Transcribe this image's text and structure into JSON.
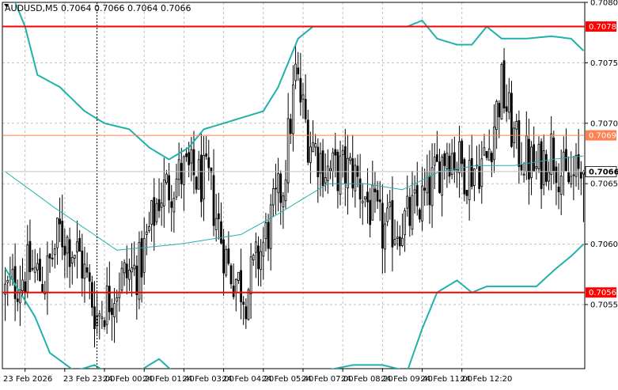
{
  "header": {
    "symbol_line": "AUDUSD,M5  0.7064 0.7066 0.7064 0.7066"
  },
  "colors": {
    "background": "#ffffff",
    "grid": "#c0c0c0",
    "candle": "#000000",
    "bands": "#20b2aa",
    "level_line": "#ff0000",
    "level_line_thin": "#ff7f50",
    "price_tag_text": "#ffffff",
    "current_tag_bg": "#ffffff",
    "current_tag_text": "#000000"
  },
  "chart_data": {
    "type": "candlestick",
    "symbol": "AUDUSD",
    "timeframe": "M5",
    "ylim": [
      0.70497,
      0.708
    ],
    "y_ticks": [
      "0.7080",
      "0.7075",
      "0.7070",
      "0.7065",
      "0.7060",
      "0.7055"
    ],
    "y_tick_values": [
      0.708,
      0.7075,
      0.707,
      0.7065,
      0.706,
      0.7055
    ],
    "x_ticks": [
      "23 Feb 2026",
      "23 Feb 23:00",
      "24 Feb 00:20",
      "24 Feb 01:40",
      "24 Feb 03:00",
      "24 Feb 04:20",
      "24 Feb 05:40",
      "24 Feb 07:00",
      "24 Feb 08:20",
      "24 Feb 09:40",
      "24 Feb 11:00",
      "24 Feb 12:20"
    ],
    "horizontal_levels": [
      {
        "label": "0.7078",
        "value": 0.7078,
        "style": "thick"
      },
      {
        "label": "0.7069",
        "value": 0.7069,
        "style": "thin"
      },
      {
        "label": "0.7056",
        "value": 0.7056,
        "style": "thick"
      }
    ],
    "current_price": {
      "label": "0.7066",
      "value": 0.7066
    },
    "open_price": 0.7056,
    "close_waypoints": [
      [
        0,
        0.7056
      ],
      [
        10,
        0.7058
      ],
      [
        16,
        0.7057
      ],
      [
        22,
        0.7061
      ],
      [
        30,
        0.7059
      ],
      [
        37,
        0.7054
      ],
      [
        46,
        0.7057
      ],
      [
        54,
        0.7058
      ],
      [
        62,
        0.7064
      ],
      [
        72,
        0.7066
      ],
      [
        82,
        0.7065
      ],
      [
        90,
        0.7058
      ],
      [
        97,
        0.7056
      ],
      [
        104,
        0.706
      ],
      [
        112,
        0.7065
      ],
      [
        117,
        0.7074
      ],
      [
        122,
        0.7069
      ],
      [
        130,
        0.7066
      ],
      [
        140,
        0.7066
      ],
      [
        152,
        0.7061
      ],
      [
        162,
        0.7062
      ],
      [
        170,
        0.7064
      ],
      [
        178,
        0.7068
      ],
      [
        186,
        0.7066
      ],
      [
        194,
        0.7067
      ],
      [
        200,
        0.7073
      ],
      [
        206,
        0.7068
      ],
      [
        214,
        0.7066
      ],
      [
        220,
        0.7068
      ],
      [
        226,
        0.7065
      ],
      [
        233,
        0.7066
      ]
    ],
    "mid_band": [
      [
        0,
        0.7066
      ],
      [
        20,
        0.7063
      ],
      [
        45,
        0.70595
      ],
      [
        70,
        0.706
      ],
      [
        95,
        0.70608
      ],
      [
        110,
        0.70625
      ],
      [
        130,
        0.7065
      ],
      [
        145,
        0.7065
      ],
      [
        160,
        0.70645
      ],
      [
        175,
        0.7066
      ],
      [
        190,
        0.70665
      ],
      [
        205,
        0.70665
      ],
      [
        220,
        0.7067
      ],
      [
        233,
        0.70673
      ]
    ],
    "upper_band": [
      [
        0,
        0.7082
      ],
      [
        8,
        0.7078
      ],
      [
        13,
        0.7074
      ],
      [
        22,
        0.7073
      ],
      [
        32,
        0.7071
      ],
      [
        40,
        0.707
      ],
      [
        50,
        0.70695
      ],
      [
        58,
        0.7068
      ],
      [
        66,
        0.7067
      ],
      [
        74,
        0.7068
      ],
      [
        80,
        0.70695
      ],
      [
        88,
        0.707
      ],
      [
        96,
        0.70705
      ],
      [
        104,
        0.7071
      ],
      [
        110,
        0.7073
      ],
      [
        118,
        0.7077
      ],
      [
        124,
        0.7078
      ],
      [
        135,
        0.7078
      ],
      [
        150,
        0.7078
      ],
      [
        162,
        0.7078
      ],
      [
        168,
        0.70785
      ],
      [
        174,
        0.7077
      ],
      [
        182,
        0.70765
      ],
      [
        188,
        0.70765
      ],
      [
        194,
        0.7078
      ],
      [
        200,
        0.7077
      ],
      [
        210,
        0.7077
      ],
      [
        220,
        0.70772
      ],
      [
        228,
        0.7077
      ],
      [
        233,
        0.7076
      ]
    ],
    "lower_band": [
      [
        0,
        0.7058
      ],
      [
        6,
        0.7056
      ],
      [
        12,
        0.7054
      ],
      [
        18,
        0.7051
      ],
      [
        28,
        0.70495
      ],
      [
        36,
        0.705
      ],
      [
        44,
        0.7049
      ],
      [
        54,
        0.70495
      ],
      [
        62,
        0.70505
      ],
      [
        70,
        0.7049
      ],
      [
        80,
        0.70495
      ],
      [
        90,
        0.70495
      ],
      [
        100,
        0.7049
      ],
      [
        118,
        0.7048
      ],
      [
        128,
        0.70495
      ],
      [
        140,
        0.705
      ],
      [
        152,
        0.705
      ],
      [
        162,
        0.70495
      ],
      [
        168,
        0.7053
      ],
      [
        174,
        0.7056
      ],
      [
        182,
        0.7057
      ],
      [
        188,
        0.7056
      ],
      [
        194,
        0.70565
      ],
      [
        204,
        0.70565
      ],
      [
        214,
        0.70565
      ],
      [
        222,
        0.7058
      ],
      [
        228,
        0.7059
      ],
      [
        233,
        0.706
      ]
    ],
    "num_candles": 234,
    "grid": true,
    "vertical_crosshair_index": 37
  }
}
